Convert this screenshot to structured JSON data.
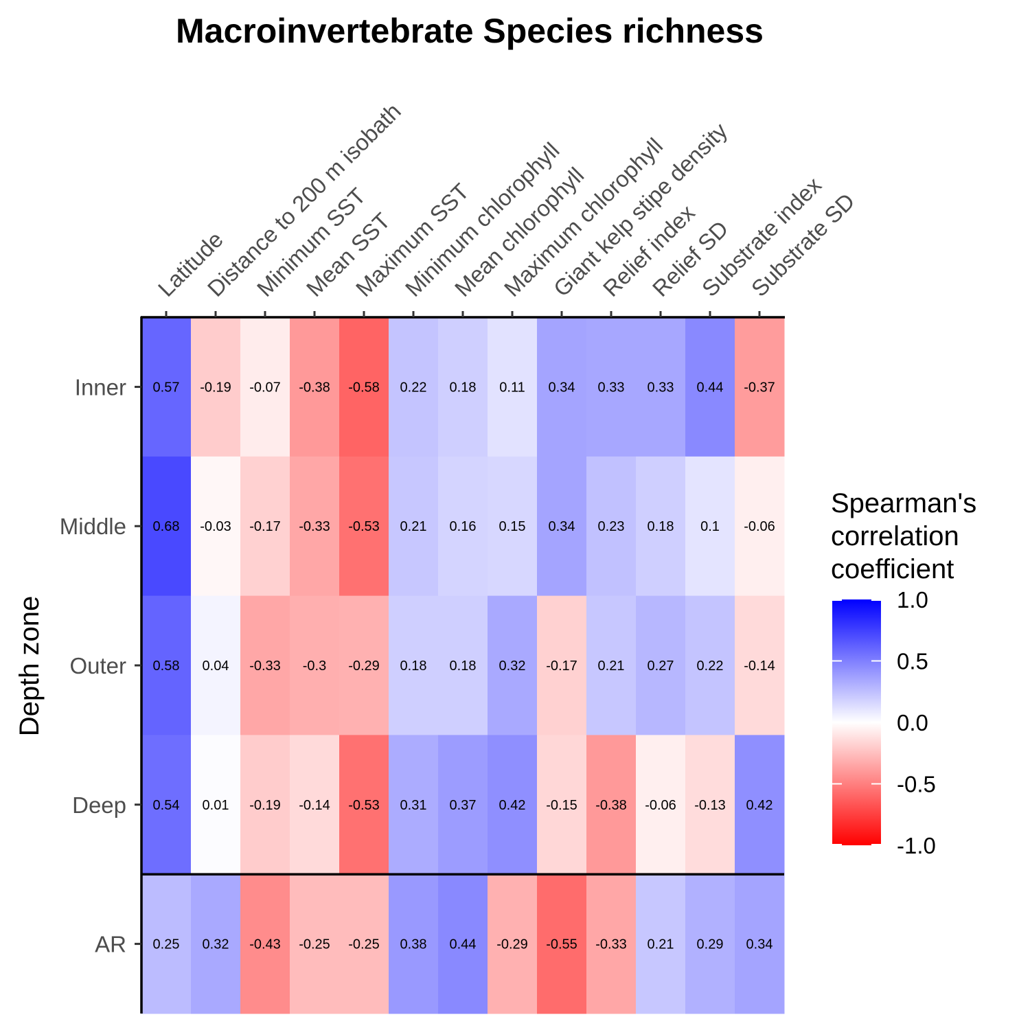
{
  "chart_data": {
    "type": "heatmap",
    "title": "Macroinvertebrate  Species richness",
    "ylabel": "Depth zone",
    "xlabel": "",
    "columns": [
      "Latitude",
      "Distance to 200 m isobath",
      "Minimum SST",
      "Mean SST",
      "Maximum SST",
      "Minimum chlorophyll",
      "Mean chlorophyll",
      "Maximum chlorophyll",
      "Giant kelp stipe density",
      "Relief index",
      "Relief SD",
      "Substrate index",
      "Substrate SD"
    ],
    "rows": [
      "Inner",
      "Middle",
      "Outer",
      "Deep",
      "AR"
    ],
    "values": [
      [
        0.57,
        -0.19,
        -0.07,
        -0.38,
        -0.58,
        0.22,
        0.18,
        0.11,
        0.34,
        0.33,
        0.33,
        0.44,
        -0.37
      ],
      [
        0.68,
        -0.03,
        -0.17,
        -0.33,
        -0.53,
        0.21,
        0.16,
        0.15,
        0.34,
        0.23,
        0.18,
        0.1,
        -0.06
      ],
      [
        0.58,
        0.04,
        -0.33,
        -0.3,
        -0.29,
        0.18,
        0.18,
        0.32,
        -0.17,
        0.21,
        0.27,
        0.22,
        -0.14
      ],
      [
        0.54,
        0.01,
        -0.19,
        -0.14,
        -0.53,
        0.31,
        0.37,
        0.42,
        -0.15,
        -0.38,
        -0.06,
        -0.13,
        0.42
      ],
      [
        0.25,
        0.32,
        -0.43,
        -0.25,
        -0.25,
        0.38,
        0.44,
        -0.29,
        -0.55,
        -0.33,
        0.21,
        0.29,
        0.34
      ]
    ],
    "legend": {
      "title": "Spearman's correlation coefficient",
      "title_lines": [
        "Spearman's",
        "correlation",
        "coefficient"
      ],
      "range": [
        -1.0,
        1.0
      ],
      "ticks": [
        "1.0",
        "0.5",
        "0.0",
        "-0.5",
        "-1.0"
      ],
      "placement": "right"
    },
    "colors": {
      "low": "#ff0000",
      "mid": "#ffffff",
      "high": "#0000ff"
    },
    "separator_after_row": "Deep"
  }
}
